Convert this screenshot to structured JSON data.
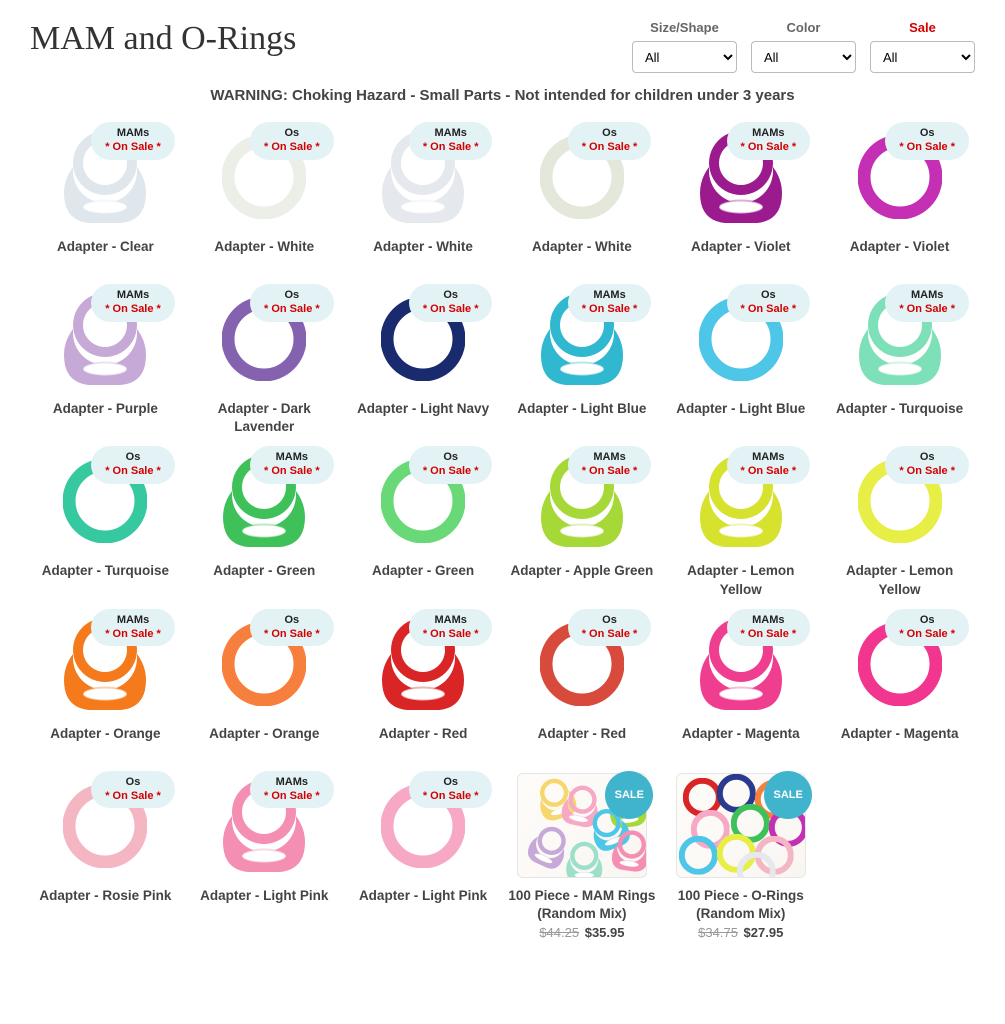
{
  "page": {
    "title": "MAM and O-Rings",
    "warning": "WARNING: Choking Hazard - Small Parts - Not intended for children under 3 years"
  },
  "filters": [
    {
      "label": "Size/Shape",
      "value": "All",
      "highlight": false
    },
    {
      "label": "Color",
      "value": "All",
      "highlight": false
    },
    {
      "label": "Sale",
      "value": "All",
      "highlight": true
    }
  ],
  "badge_text": {
    "onsale": "* On Sale *",
    "sale_round": "SALE"
  },
  "products": [
    {
      "type": "MAMs",
      "shape": "mam",
      "color": "#dfe6ec",
      "name": "Adapter - Clear"
    },
    {
      "type": "Os",
      "shape": "ring",
      "color": "#eceee8",
      "name": "Adapter - White"
    },
    {
      "type": "MAMs",
      "shape": "mam",
      "color": "#e5e9ed",
      "name": "Adapter - White"
    },
    {
      "type": "Os",
      "shape": "ring",
      "color": "#e4e8da",
      "name": "Adapter - White"
    },
    {
      "type": "MAMs",
      "shape": "mam",
      "color": "#9b1a8e",
      "name": "Adapter - Violet"
    },
    {
      "type": "Os",
      "shape": "ring",
      "color": "#c42fb3",
      "name": "Adapter - Violet"
    },
    {
      "type": "MAMs",
      "shape": "mam",
      "color": "#c6a9d7",
      "name": "Adapter - Purple"
    },
    {
      "type": "Os",
      "shape": "ring",
      "color": "#8462b0",
      "name": "Adapter - Dark Lavender"
    },
    {
      "type": "Os",
      "shape": "ring",
      "color": "#1a2a6e",
      "name": "Adapter - Light Navy"
    },
    {
      "type": "MAMs",
      "shape": "mam",
      "color": "#2fb8cf",
      "name": "Adapter - Light Blue"
    },
    {
      "type": "Os",
      "shape": "ring",
      "color": "#4dc6e8",
      "name": "Adapter - Light Blue"
    },
    {
      "type": "MAMs",
      "shape": "mam",
      "color": "#7de0b8",
      "name": "Adapter - Turquoise"
    },
    {
      "type": "Os",
      "shape": "ring",
      "color": "#36c9a0",
      "name": "Adapter - Turquoise"
    },
    {
      "type": "MAMs",
      "shape": "mam",
      "color": "#3fc15a",
      "name": "Adapter - Green"
    },
    {
      "type": "Os",
      "shape": "ring",
      "color": "#69d978",
      "name": "Adapter - Green"
    },
    {
      "type": "MAMs",
      "shape": "mam",
      "color": "#a6d838",
      "name": "Adapter - Apple Green"
    },
    {
      "type": "MAMs",
      "shape": "mam",
      "color": "#d7e22e",
      "name": "Adapter - Lemon Yellow"
    },
    {
      "type": "Os",
      "shape": "ring",
      "color": "#e7ee46",
      "name": "Adapter - Lemon Yellow"
    },
    {
      "type": "MAMs",
      "shape": "mam",
      "color": "#f47a1c",
      "name": "Adapter - Orange"
    },
    {
      "type": "Os",
      "shape": "ring",
      "color": "#f77f3e",
      "name": "Adapter - Orange"
    },
    {
      "type": "MAMs",
      "shape": "mam",
      "color": "#d92525",
      "name": "Adapter - Red"
    },
    {
      "type": "Os",
      "shape": "ring",
      "color": "#d84b3c",
      "name": "Adapter - Red"
    },
    {
      "type": "MAMs",
      "shape": "mam",
      "color": "#ef3d8f",
      "name": "Adapter - Magenta"
    },
    {
      "type": "Os",
      "shape": "ring",
      "color": "#f2358e",
      "name": "Adapter - Magenta"
    },
    {
      "type": "Os",
      "shape": "ring",
      "color": "#f5b6c4",
      "name": "Adapter - Rosie Pink"
    },
    {
      "type": "MAMs",
      "shape": "mam",
      "color": "#f48eb3",
      "name": "Adapter - Light Pink"
    },
    {
      "type": "Os",
      "shape": "ring",
      "color": "#f7a8c4",
      "name": "Adapter - Light Pink"
    },
    {
      "type": "mix",
      "shape": "mix-mam",
      "name": "100 Piece - MAM Rings (Random Mix)",
      "price_old": "$44.25",
      "price_new": "$35.95"
    },
    {
      "type": "mix",
      "shape": "mix-o",
      "name": "100 Piece - O-Rings (Random Mix)",
      "price_old": "$34.75",
      "price_new": "$27.95"
    }
  ],
  "style": {
    "badge_bg": "#e2f2f5",
    "onsale_color": "#d40000",
    "sale_label_color": "#d40000",
    "sale_round_bg": "#3fb4cc",
    "title_fontsize": 34,
    "caption_fontsize": 13.5,
    "grid_cols": 6,
    "image_box_height": 110
  },
  "mix_colors": {
    "mam": [
      "#f5d76e",
      "#f7a8c4",
      "#a6d838",
      "#c6a9d7",
      "#4dc6e8",
      "#f48eb3",
      "#9de0c9"
    ],
    "o": [
      "#d92525",
      "#2a3a8f",
      "#f77f3e",
      "#f7a8c4",
      "#3fc15a",
      "#c42fb3",
      "#4dc6e8",
      "#e7ee46",
      "#f5b6c4",
      "#e5e9ed"
    ]
  }
}
